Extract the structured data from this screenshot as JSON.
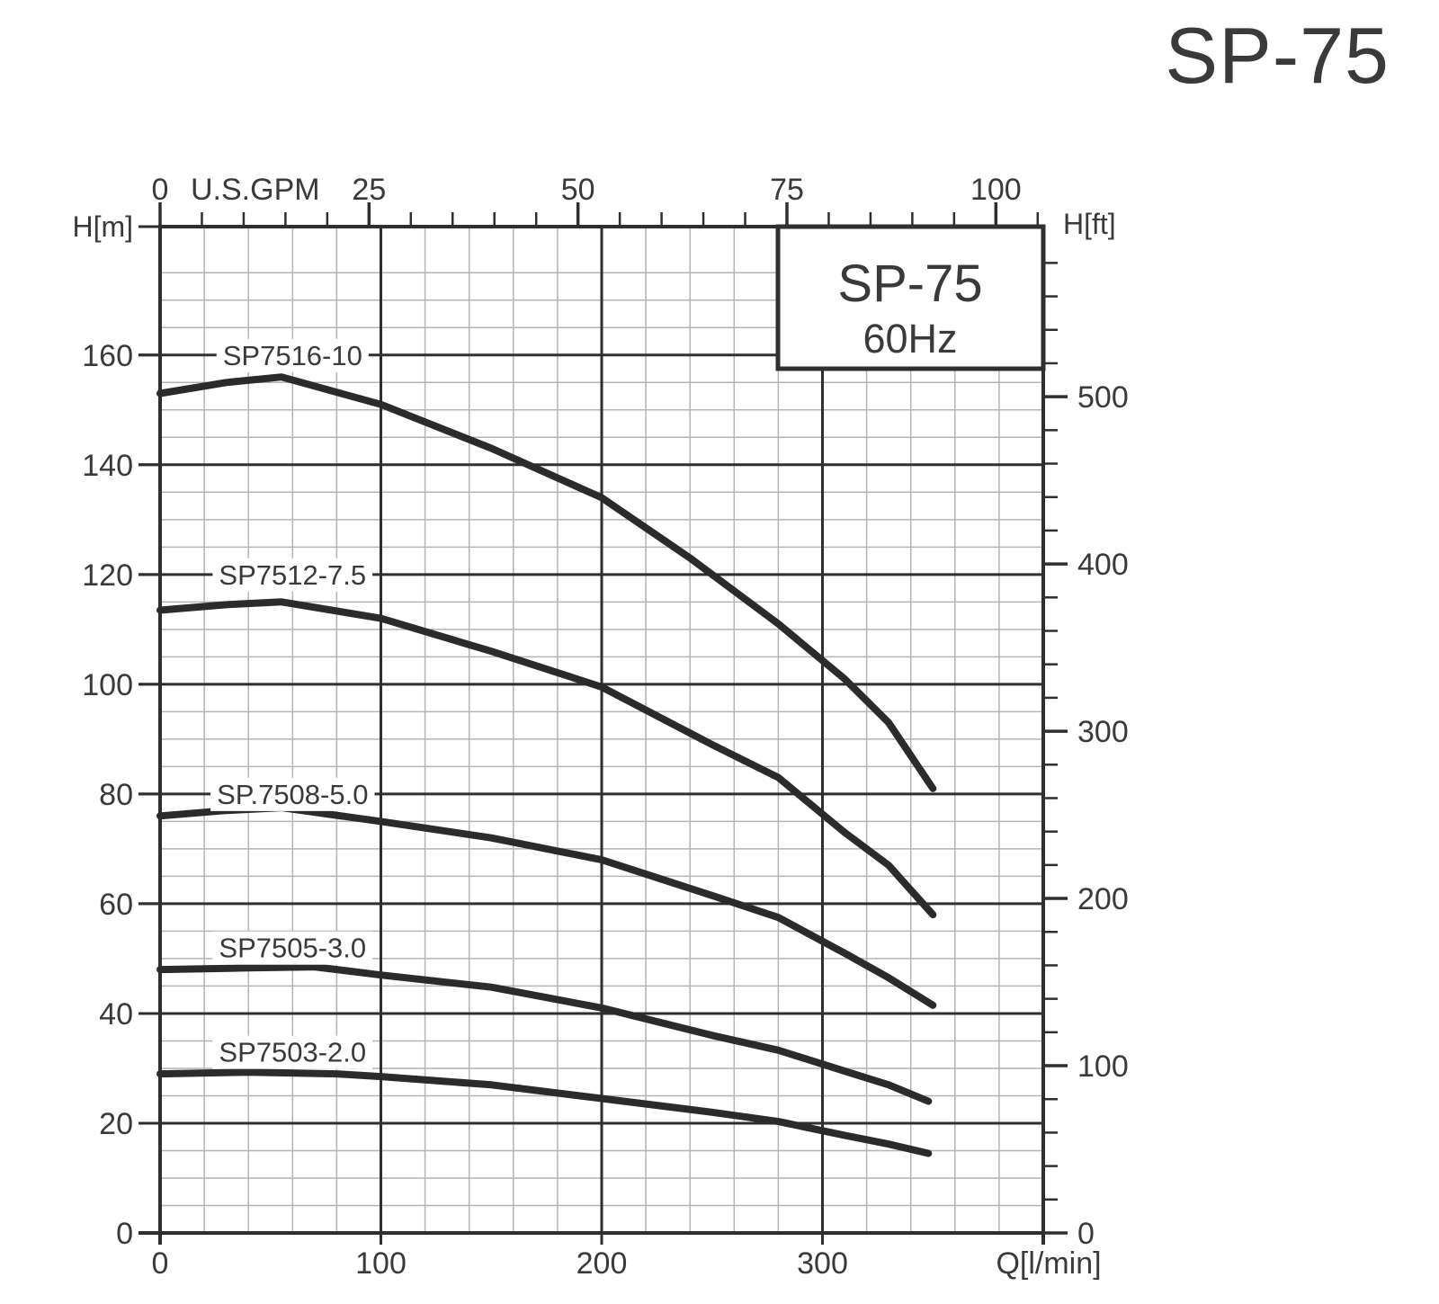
{
  "page": {
    "title": "SP-75"
  },
  "colors": {
    "background": "#ffffff",
    "text": "#3a3a3a",
    "major_grid": "#2f2f2f",
    "minor_grid": "#b4b4b4",
    "curve": "#2b2b2b",
    "label_bg": "#ffffff"
  },
  "chart_data": {
    "type": "line",
    "title": "SP-75",
    "legend_box": {
      "line1": "SP-75",
      "line2": "60Hz"
    },
    "x_axis_bottom": {
      "label": "Q[l/min]",
      "ticks": [
        0,
        100,
        200,
        300
      ],
      "minor_step": 20,
      "range": [
        0,
        400
      ]
    },
    "x_axis_top": {
      "label": "U.S.GPM",
      "zero_label": "0",
      "ticks": [
        25,
        50,
        75,
        100
      ],
      "minor_step": 5,
      "minor_max": 105,
      "gpm_to_lmin": 3.7854
    },
    "y_axis_left": {
      "label": "H[m]",
      "ticks": [
        0,
        20,
        40,
        60,
        80,
        100,
        120,
        140,
        160
      ],
      "minor_step": 5,
      "range": [
        0,
        183.4
      ]
    },
    "y_axis_right": {
      "label": "H[ft]",
      "ticks": [
        0,
        100,
        200,
        300,
        400,
        500
      ],
      "minor_step": 20,
      "minor_max": 580,
      "ft_to_m": 0.3048
    },
    "grid": {
      "major_x_step_lmin": 100,
      "minor_x_step_lmin": 20,
      "major_y_step_m": 20,
      "minor_y_step_m": 5
    },
    "label_anchor_q_lmin": 60,
    "series": [
      {
        "name": "SP7516-10",
        "label_h_m": 160,
        "points": [
          [
            0,
            153
          ],
          [
            30,
            155
          ],
          [
            55,
            156
          ],
          [
            100,
            151
          ],
          [
            150,
            143
          ],
          [
            200,
            134
          ],
          [
            240,
            123
          ],
          [
            280,
            111
          ],
          [
            310,
            101
          ],
          [
            330,
            93
          ],
          [
            350,
            81
          ]
        ]
      },
      {
        "name": "SP7512-7.5",
        "label_h_m": 120,
        "points": [
          [
            0,
            113.5
          ],
          [
            30,
            114.5
          ],
          [
            55,
            115
          ],
          [
            100,
            112
          ],
          [
            150,
            106
          ],
          [
            200,
            99.5
          ],
          [
            250,
            89
          ],
          [
            280,
            83
          ],
          [
            310,
            73
          ],
          [
            330,
            67
          ],
          [
            350,
            58
          ]
        ]
      },
      {
        "name": "SP.7508-5.0",
        "label_h_m": 80,
        "points": [
          [
            0,
            76
          ],
          [
            30,
            77
          ],
          [
            55,
            77.5
          ],
          [
            100,
            75
          ],
          [
            150,
            72
          ],
          [
            200,
            68
          ],
          [
            250,
            61.5
          ],
          [
            280,
            57.5
          ],
          [
            310,
            51
          ],
          [
            330,
            46.5
          ],
          [
            350,
            41.5
          ]
        ]
      },
      {
        "name": "SP7505-3.0",
        "label_h_m": 52,
        "points": [
          [
            0,
            48
          ],
          [
            40,
            48.3
          ],
          [
            70,
            48.5
          ],
          [
            100,
            47
          ],
          [
            150,
            44.8
          ],
          [
            200,
            41
          ],
          [
            250,
            36
          ],
          [
            280,
            33.3
          ],
          [
            310,
            29.5
          ],
          [
            330,
            27
          ],
          [
            348,
            24
          ]
        ]
      },
      {
        "name": "SP7503-2.0",
        "label_h_m": 33,
        "points": [
          [
            0,
            29
          ],
          [
            40,
            29.3
          ],
          [
            80,
            29
          ],
          [
            100,
            28.5
          ],
          [
            150,
            27
          ],
          [
            200,
            24.5
          ],
          [
            250,
            22
          ],
          [
            280,
            20.3
          ],
          [
            310,
            17.8
          ],
          [
            330,
            16.2
          ],
          [
            348,
            14.5
          ]
        ]
      }
    ]
  }
}
